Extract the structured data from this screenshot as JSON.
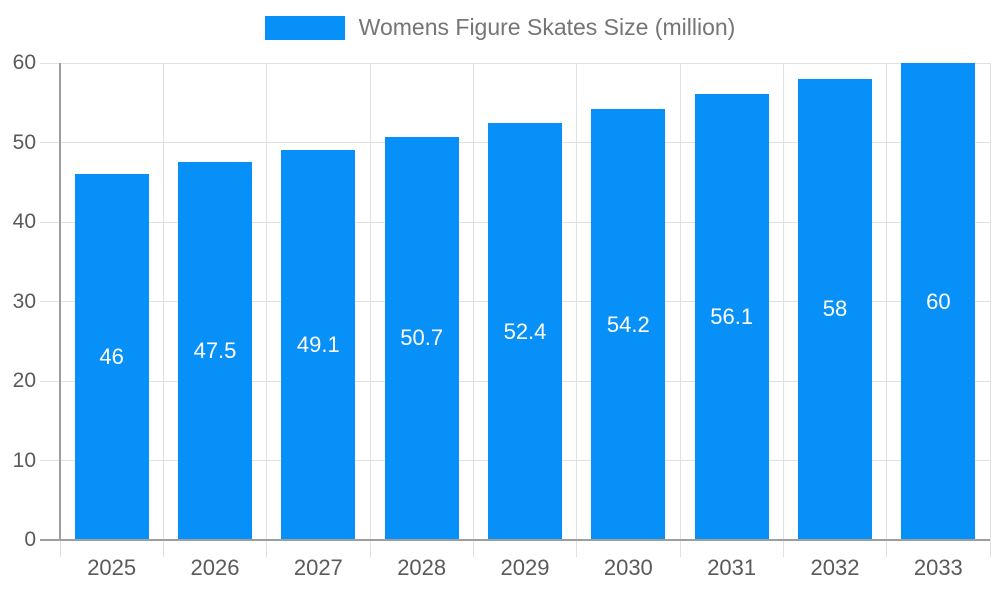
{
  "legend": {
    "label": "Womens Figure Skates Size (million)"
  },
  "chart_data": {
    "type": "bar",
    "title": "",
    "xlabel": "",
    "ylabel": "",
    "categories": [
      "2025",
      "2026",
      "2027",
      "2028",
      "2029",
      "2030",
      "2031",
      "2032",
      "2033"
    ],
    "values": [
      46,
      47.5,
      49.1,
      50.7,
      52.4,
      54.2,
      56.1,
      58,
      60
    ],
    "value_labels": [
      "46",
      "47.5",
      "49.1",
      "50.7",
      "52.4",
      "54.2",
      "56.1",
      "58",
      "60"
    ],
    "series_name": "Womens Figure Skates Size (million)",
    "ylim": [
      0,
      60
    ],
    "yticks": [
      0,
      10,
      20,
      30,
      40,
      50,
      60
    ],
    "ytick_labels": [
      "0",
      "10",
      "20",
      "30",
      "40",
      "50",
      "60"
    ],
    "grid": true,
    "legend_position": "top-center",
    "colors": {
      "bar": "#0890f9",
      "gridline": "#e1e1e1",
      "axis": "#9e9e9e",
      "tick_label": "#5a5a5a",
      "legend_text": "#757575",
      "value_label": "#ffffff",
      "background": "#ffffff"
    }
  }
}
